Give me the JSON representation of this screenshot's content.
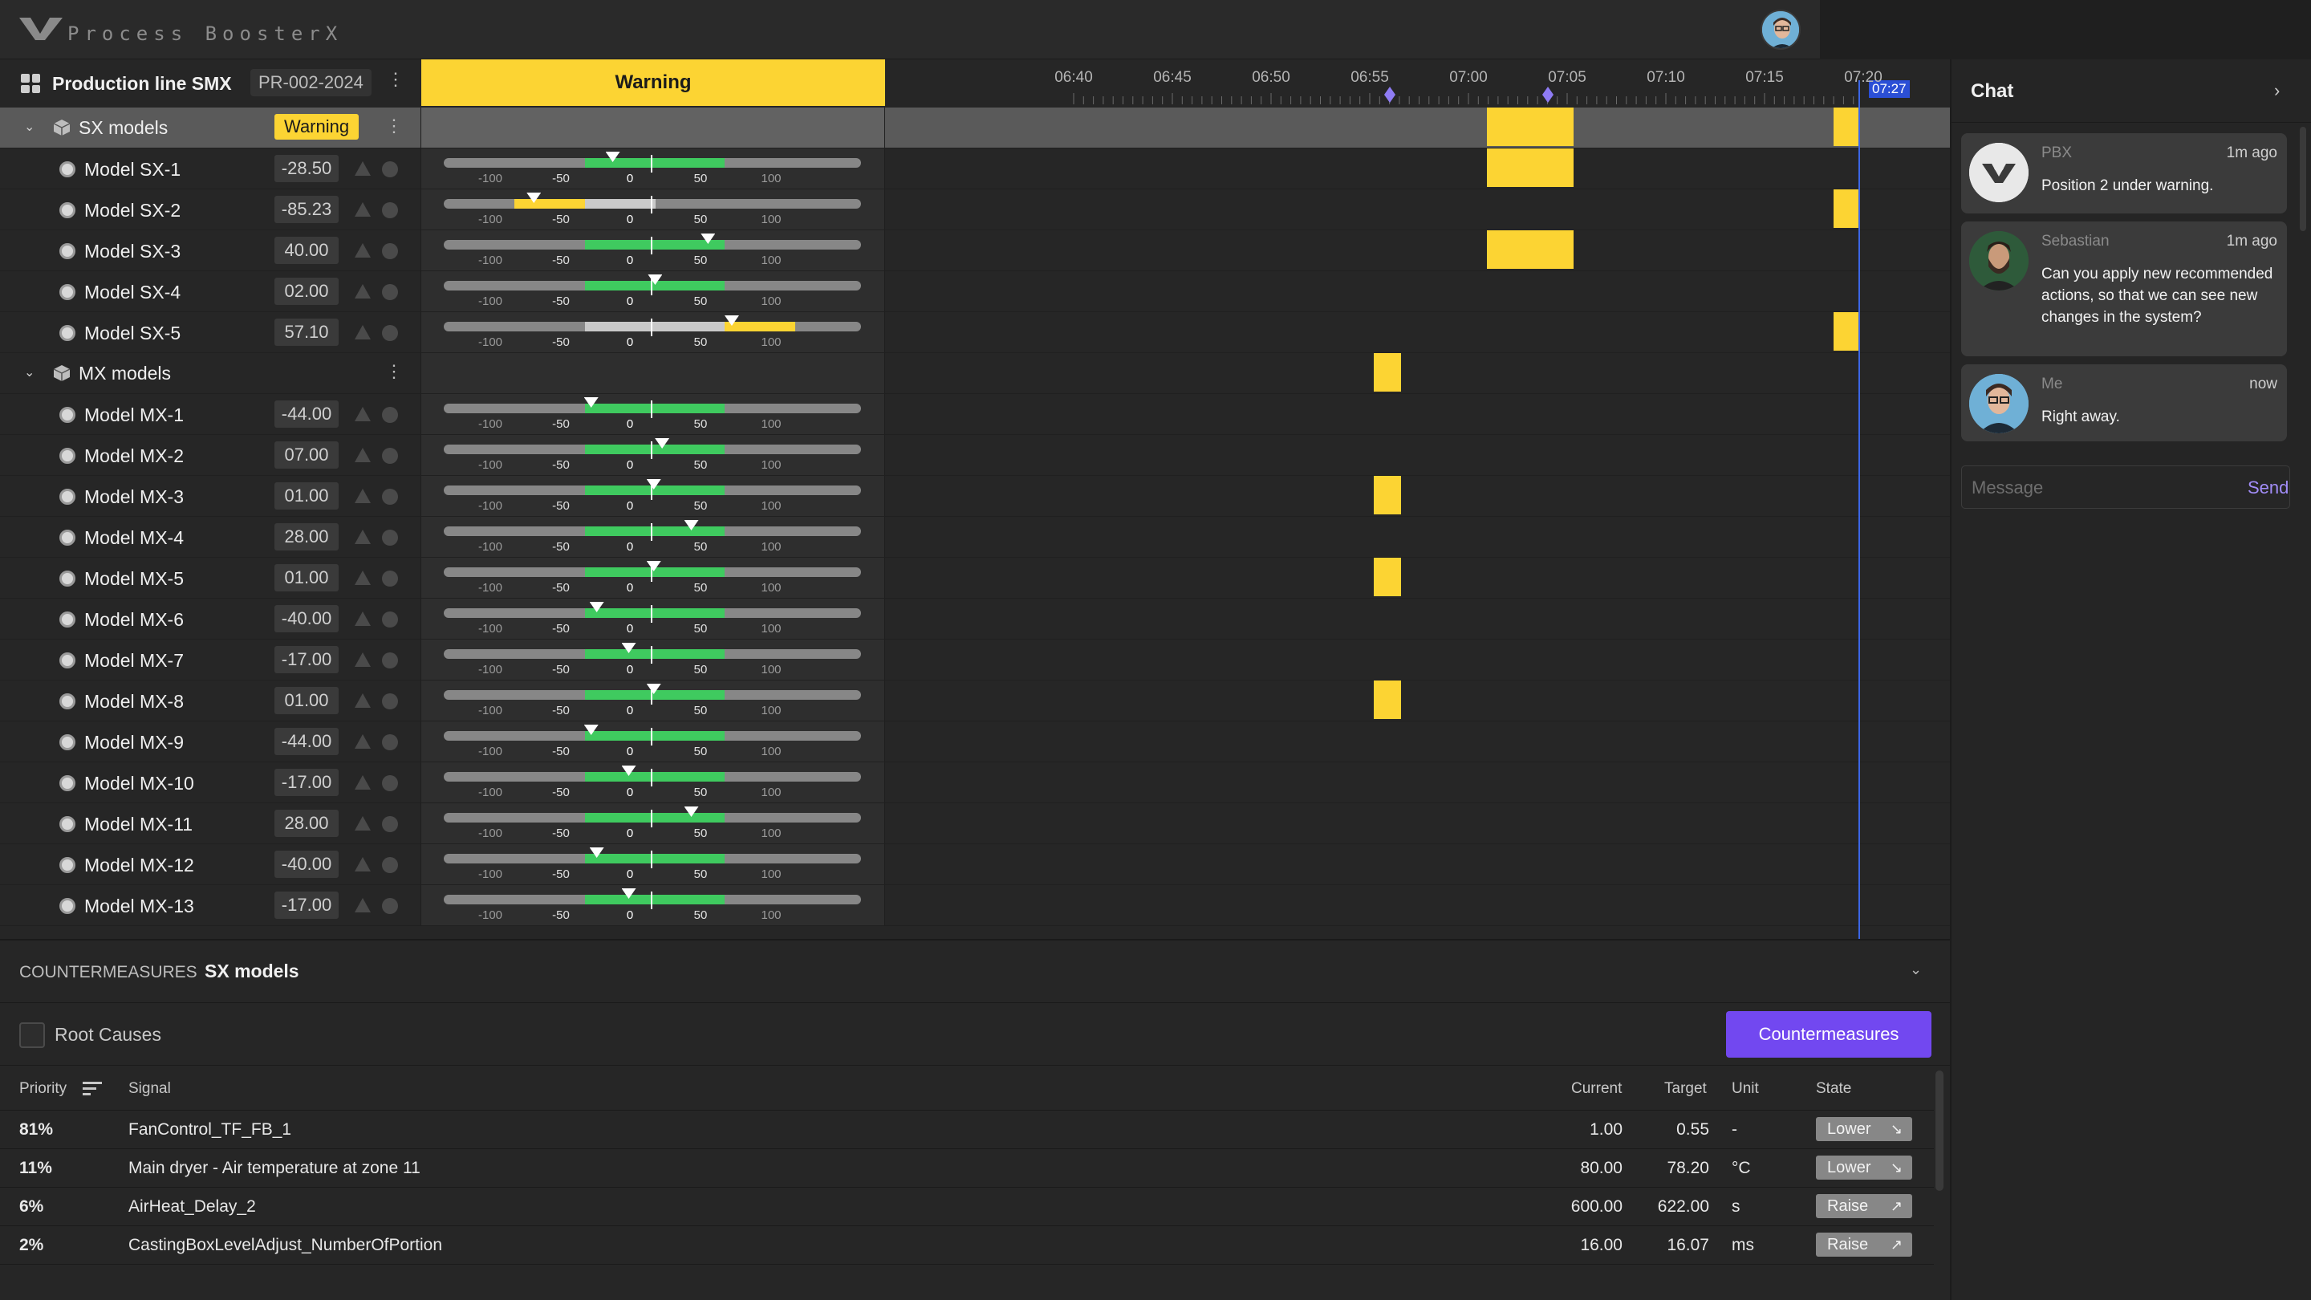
{
  "app": {
    "title": "Process BoosterX"
  },
  "header": {
    "line_title": "Production line SMX",
    "line_code": "PR-002-2024",
    "status": "Warning"
  },
  "timeline": {
    "labels": [
      "06:40",
      "06:45",
      "06:50",
      "06:55",
      "07:00",
      "07:05",
      "07:10",
      "07:15",
      "07:20"
    ],
    "now": "07:27"
  },
  "groups": [
    {
      "label": "SX models",
      "status": "Warning",
      "models": [
        {
          "name": "Model SX-1",
          "value": "-28.50",
          "pointer": -28.5,
          "warn": false
        },
        {
          "name": "Model SX-2",
          "value": "-85.23",
          "pointer": -85.23,
          "warn": true
        },
        {
          "name": "Model SX-3",
          "value": "40.00",
          "pointer": 40,
          "warn": false
        },
        {
          "name": "Model SX-4",
          "value": "02.00",
          "pointer": 2,
          "warn": false
        },
        {
          "name": "Model SX-5",
          "value": "57.10",
          "pointer": 57.1,
          "warn": true
        }
      ]
    },
    {
      "label": "MX models",
      "status": "",
      "models": [
        {
          "name": "Model MX-1",
          "value": "-44.00",
          "pointer": -44,
          "warn": false
        },
        {
          "name": "Model MX-2",
          "value": "07.00",
          "pointer": 7,
          "warn": false
        },
        {
          "name": "Model MX-3",
          "value": "01.00",
          "pointer": 1,
          "warn": false
        },
        {
          "name": "Model MX-4",
          "value": "28.00",
          "pointer": 28,
          "warn": false
        },
        {
          "name": "Model MX-5",
          "value": "01.00",
          "pointer": 1,
          "warn": false
        },
        {
          "name": "Model MX-6",
          "value": "-40.00",
          "pointer": -40,
          "warn": false
        },
        {
          "name": "Model MX-7",
          "value": "-17.00",
          "pointer": -17,
          "warn": false
        },
        {
          "name": "Model MX-8",
          "value": "01.00",
          "pointer": 1,
          "warn": false
        },
        {
          "name": "Model MX-9",
          "value": "-44.00",
          "pointer": -44,
          "warn": false
        },
        {
          "name": "Model MX-10",
          "value": "-17.00",
          "pointer": -17,
          "warn": false
        },
        {
          "name": "Model MX-11",
          "value": "28.00",
          "pointer": 28,
          "warn": false
        },
        {
          "name": "Model MX-12",
          "value": "-40.00",
          "pointer": -40,
          "warn": false
        },
        {
          "name": "Model MX-13",
          "value": "-17.00",
          "pointer": -17,
          "warn": false
        }
      ]
    }
  ],
  "gauge_ticks": [
    "-100",
    "-50",
    "0",
    "50",
    "100"
  ],
  "chat": {
    "title": "Chat",
    "messages": [
      {
        "author": "PBX",
        "time": "1m ago",
        "text": "Position 2 under warning."
      },
      {
        "author": "Sebastian",
        "time": "1m ago",
        "text": "Can you apply new recommended actions, so that we can see new changes in the system?"
      },
      {
        "author": "Me",
        "time": "now",
        "text": "Right away."
      }
    ],
    "input_placeholder": "Message",
    "send_label": "Send"
  },
  "countermeasures": {
    "label": "COUNTERMEASURES",
    "scope": "SX models",
    "root_causes_label": "Root Causes",
    "button_label": "Countermeasures",
    "columns": {
      "priority": "Priority",
      "signal": "Signal",
      "current": "Current",
      "target": "Target",
      "unit": "Unit",
      "state": "State"
    },
    "rows": [
      {
        "priority": "81%",
        "signal": "FanControl_TF_FB_1",
        "current": "1.00",
        "target": "0.55",
        "unit": "-",
        "state": "Lower",
        "arrow": "↘"
      },
      {
        "priority": "11%",
        "signal": "Main dryer - Air temperature at zone 11",
        "current": "80.00",
        "target": "78.20",
        "unit": "°C",
        "state": "Lower",
        "arrow": "↘"
      },
      {
        "priority": "6%",
        "signal": "AirHeat_Delay_2",
        "current": "600.00",
        "target": "622.00",
        "unit": "s",
        "state": "Raise",
        "arrow": "↗"
      },
      {
        "priority": "2%",
        "signal": "CastingBoxLevelAdjust_NumberOfPortion",
        "current": "16.00",
        "target": "16.07",
        "unit": "ms",
        "state": "Raise",
        "arrow": "↗"
      }
    ]
  },
  "colors": {
    "warning": "#fcd433",
    "ok": "#3fca5f",
    "accent": "#7248f0",
    "now_line": "#3b66e6",
    "marker": "#8f7cf4"
  }
}
